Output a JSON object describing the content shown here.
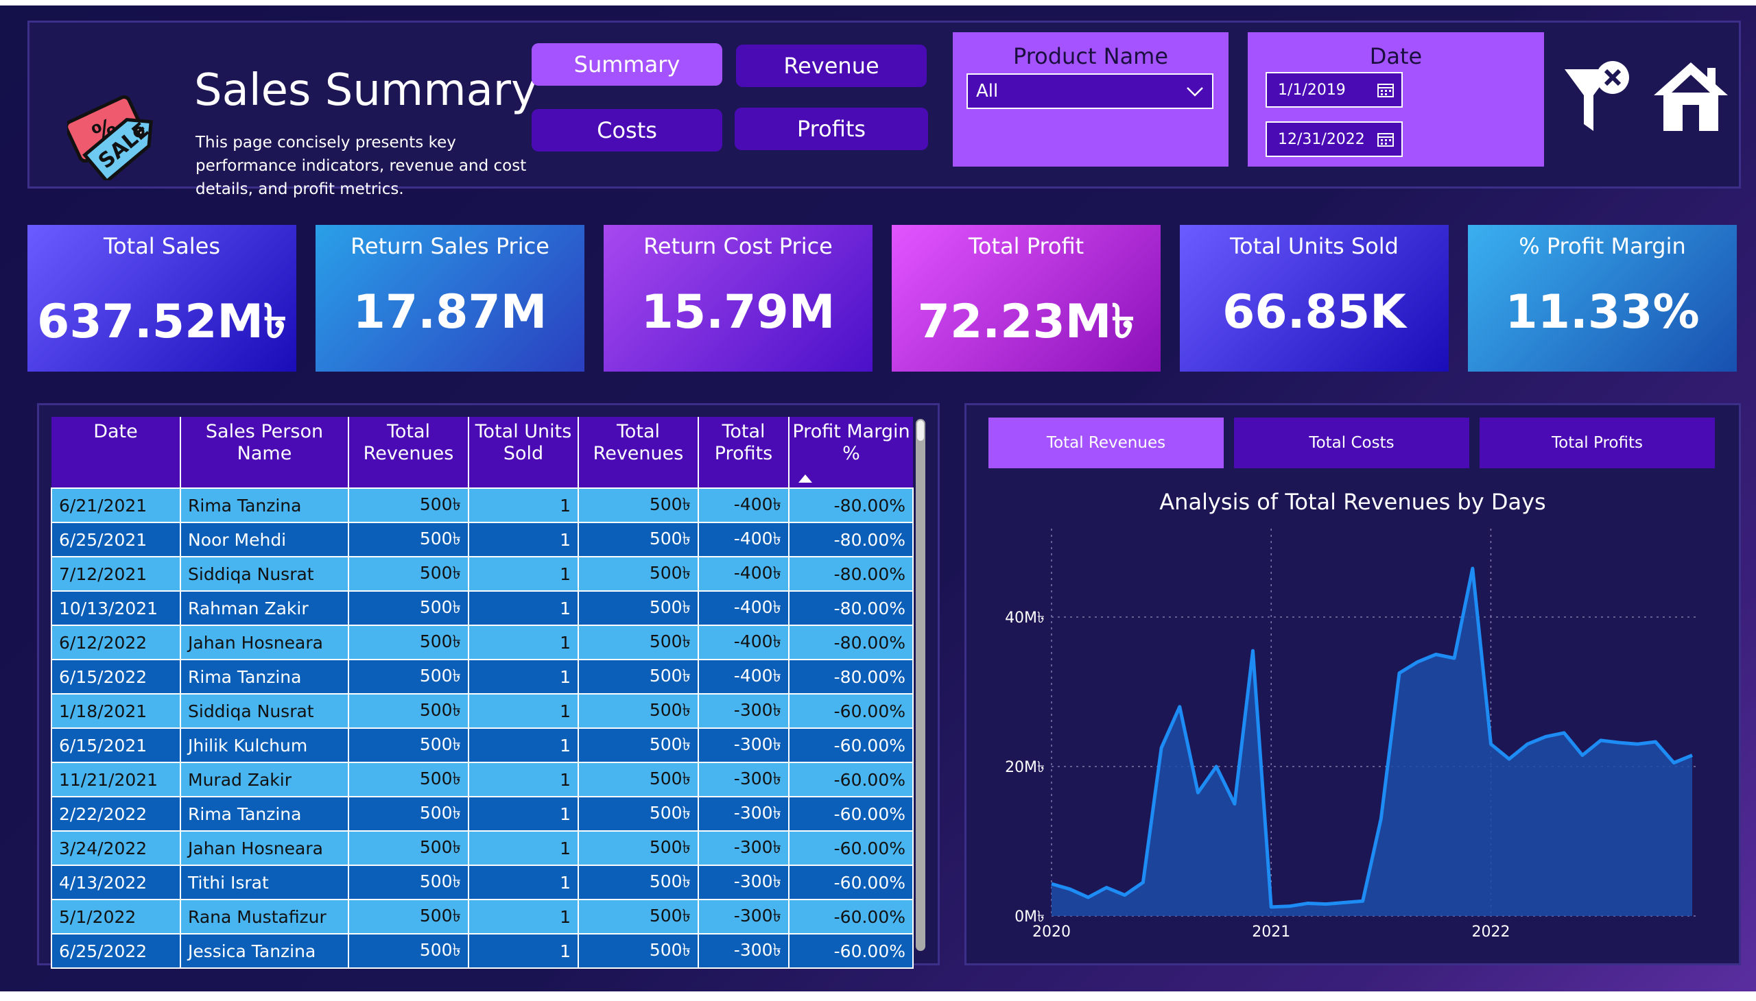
{
  "header": {
    "title": "Sales Summary",
    "description": "This page concisely presents key performance indicators, revenue and cost details, and profit metrics.",
    "logo_text": "SALE",
    "logo_symbol": "%",
    "nav": [
      {
        "label": "Summary",
        "active": true
      },
      {
        "label": "Revenue",
        "active": false
      },
      {
        "label": "Costs",
        "active": false
      },
      {
        "label": "Profits",
        "active": false
      }
    ],
    "product_filter": {
      "title": "Product Name",
      "value": "All"
    },
    "date_filter": {
      "title": "Date",
      "start": "1/1/2019",
      "end": "12/31/2022"
    },
    "icons": {
      "clear_filters": "filter-clear-icon",
      "home": "home-icon"
    }
  },
  "colors": {
    "accent": "#a553ff",
    "nav_dark": "#4a0bb5",
    "row_light": "#48b4f0",
    "row_dark": "#0b5fb8",
    "line": "#1e8cf5"
  },
  "kpis": [
    {
      "title": "Total Sales",
      "value": "637.52M৳",
      "gradient": [
        "#6a5cff",
        "#1a0db8"
      ]
    },
    {
      "title": "Return Sales Price",
      "value": "17.87M",
      "gradient": [
        "#2aa0e8",
        "#2a3fc0"
      ]
    },
    {
      "title": "Return Cost Price",
      "value": "15.79M",
      "gradient": [
        "#a848f0",
        "#4a10c8"
      ]
    },
    {
      "title": "Total Profit",
      "value": "72.23M৳",
      "gradient": [
        "#e255ff",
        "#8a10b8"
      ]
    },
    {
      "title": "Total Units Sold",
      "value": "66.85K",
      "gradient": [
        "#6a5cff",
        "#1a0db8"
      ]
    },
    {
      "title": "% Profit Margin",
      "value": "11.33%",
      "gradient": [
        "#3ab0f0",
        "#1850b0"
      ]
    }
  ],
  "table": {
    "columns": [
      "Date",
      "Sales Person Name",
      "Total Revenues",
      "Total Units Sold",
      "Total Revenues",
      "Total Profits",
      "Profit Margin %"
    ],
    "rows": [
      [
        "6/21/2021",
        "Rima Tanzina",
        "500৳",
        "1",
        "500৳",
        "-400৳",
        "-80.00%"
      ],
      [
        "6/25/2021",
        "Noor Mehdi",
        "500৳",
        "1",
        "500৳",
        "-400৳",
        "-80.00%"
      ],
      [
        "7/12/2021",
        "Siddiqa Nusrat",
        "500৳",
        "1",
        "500৳",
        "-400৳",
        "-80.00%"
      ],
      [
        "10/13/2021",
        "Rahman Zakir",
        "500৳",
        "1",
        "500৳",
        "-400৳",
        "-80.00%"
      ],
      [
        "6/12/2022",
        "Jahan Hosneara",
        "500৳",
        "1",
        "500৳",
        "-400৳",
        "-80.00%"
      ],
      [
        "6/15/2022",
        "Rima Tanzina",
        "500৳",
        "1",
        "500৳",
        "-400৳",
        "-80.00%"
      ],
      [
        "1/18/2021",
        "Siddiqa Nusrat",
        "500৳",
        "1",
        "500৳",
        "-300৳",
        "-60.00%"
      ],
      [
        "6/15/2021",
        "Jhilik Kulchum",
        "500৳",
        "1",
        "500৳",
        "-300৳",
        "-60.00%"
      ],
      [
        "11/21/2021",
        "Murad Zakir",
        "500৳",
        "1",
        "500৳",
        "-300৳",
        "-60.00%"
      ],
      [
        "2/22/2022",
        "Rima Tanzina",
        "500৳",
        "1",
        "500৳",
        "-300৳",
        "-60.00%"
      ],
      [
        "3/24/2022",
        "Jahan Hosneara",
        "500৳",
        "1",
        "500৳",
        "-300৳",
        "-60.00%"
      ],
      [
        "4/13/2022",
        "Tithi Israt",
        "500৳",
        "1",
        "500৳",
        "-300৳",
        "-60.00%"
      ],
      [
        "5/1/2022",
        "Rana Mustafizur",
        "500৳",
        "1",
        "500৳",
        "-300৳",
        "-60.00%"
      ],
      [
        "6/25/2022",
        "Jessica Tanzina",
        "500৳",
        "1",
        "500৳",
        "-300৳",
        "-60.00%"
      ]
    ],
    "sort_column": "Profit Margin %",
    "sort_direction": "ascending"
  },
  "chart_tabs": [
    {
      "label": "Total Revenues",
      "active": true
    },
    {
      "label": "Total Costs",
      "active": false
    },
    {
      "label": "Total Profits",
      "active": false
    }
  ],
  "chart_data": {
    "type": "area",
    "title": "Analysis of Total Revenues by Days",
    "xlabel": "",
    "ylabel": "",
    "x_ticks": [
      "2020",
      "2021",
      "2022"
    ],
    "y_ticks": [
      "0M৳",
      "20M৳",
      "40M৳"
    ],
    "ylim": [
      0,
      50
    ],
    "grid": true,
    "series": [
      {
        "color": "#1e8cf5",
        "points": [
          [
            "2020-01",
            4.3
          ],
          [
            "2020-02",
            3.6
          ],
          [
            "2020-03",
            2.5
          ],
          [
            "2020-04",
            3.8
          ],
          [
            "2020-05",
            2.8
          ],
          [
            "2020-06",
            4.5
          ],
          [
            "2020-07",
            22.5
          ],
          [
            "2020-08",
            28
          ],
          [
            "2020-09",
            16.5
          ],
          [
            "2020-10",
            20
          ],
          [
            "2020-11",
            15
          ],
          [
            "2020-12",
            35.5
          ],
          [
            "2021-01",
            1.2
          ],
          [
            "2021-02",
            1.3
          ],
          [
            "2021-03",
            1.7
          ],
          [
            "2021-04",
            1.6
          ],
          [
            "2021-05",
            1.8
          ],
          [
            "2021-06",
            2
          ],
          [
            "2021-07",
            13
          ],
          [
            "2021-08",
            32.5
          ],
          [
            "2021-09",
            34
          ],
          [
            "2021-10",
            35
          ],
          [
            "2021-11",
            34.5
          ],
          [
            "2021-12",
            46.5
          ],
          [
            "2022-01",
            23
          ],
          [
            "2022-02",
            21
          ],
          [
            "2022-03",
            23
          ],
          [
            "2022-04",
            24
          ],
          [
            "2022-05",
            24.5
          ],
          [
            "2022-06",
            21.5
          ],
          [
            "2022-07",
            23.5
          ],
          [
            "2022-08",
            23.2
          ],
          [
            "2022-09",
            23
          ],
          [
            "2022-10",
            23.3
          ],
          [
            "2022-11",
            20.5
          ],
          [
            "2022-12",
            21.5
          ]
        ]
      }
    ]
  }
}
